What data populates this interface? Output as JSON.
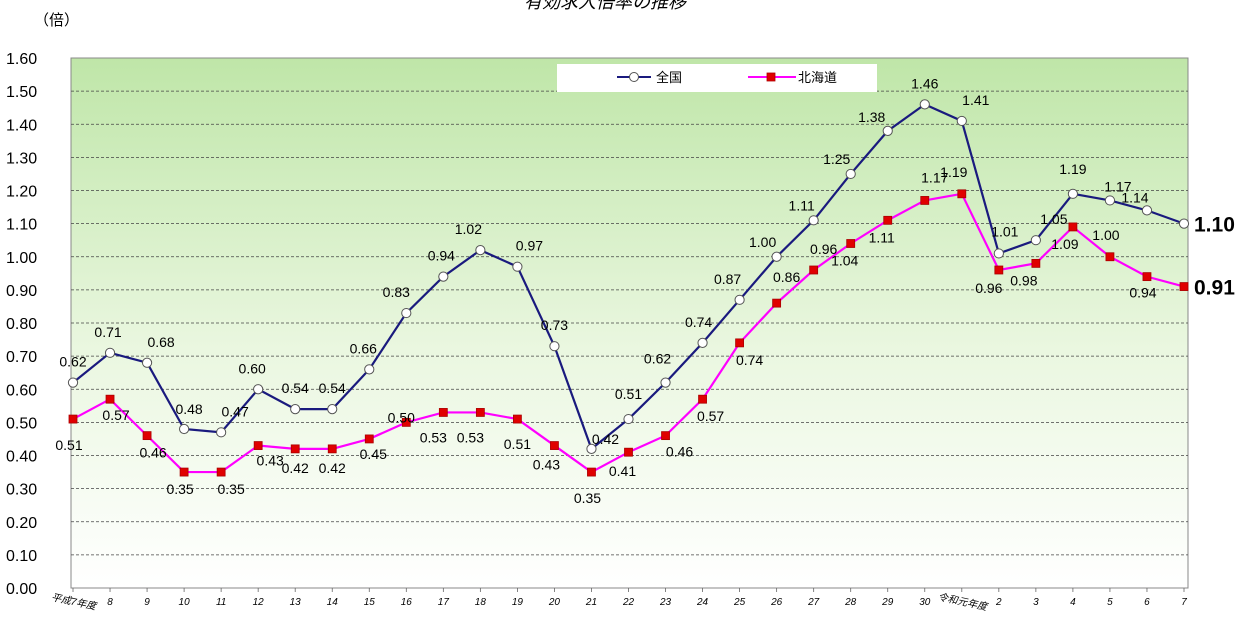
{
  "chart_data": {
    "type": "line",
    "title": "有効求人倍率の推移",
    "unit_label": "（倍）",
    "ylim": [
      0,
      1.6
    ],
    "yticks": [
      "0.00",
      "0.10",
      "0.20",
      "0.30",
      "0.40",
      "0.50",
      "0.60",
      "0.70",
      "0.80",
      "0.90",
      "1.00",
      "1.10",
      "1.20",
      "1.30",
      "1.40",
      "1.50",
      "1.60"
    ],
    "categories": [
      "平成7年度",
      "8",
      "9",
      "10",
      "11",
      "12",
      "13",
      "14",
      "15",
      "16",
      "17",
      "18",
      "19",
      "20",
      "21",
      "22",
      "23",
      "24",
      "25",
      "26",
      "27",
      "28",
      "29",
      "30",
      "令和元年度",
      "2",
      "3",
      "4",
      "5",
      "6",
      "7"
    ],
    "grid": true,
    "legend_position": "top-right",
    "series": [
      {
        "name": "全国",
        "color": "#1a1a7e",
        "marker": "circle",
        "values": [
          0.62,
          0.71,
          0.68,
          0.48,
          0.47,
          0.6,
          0.54,
          0.54,
          0.66,
          0.83,
          0.94,
          1.02,
          0.97,
          0.73,
          0.42,
          0.51,
          0.62,
          0.74,
          0.87,
          1.0,
          1.11,
          1.25,
          1.38,
          1.46,
          1.41,
          1.01,
          1.05,
          1.19,
          1.17,
          1.14,
          1.1
        ],
        "labels": [
          "0.62",
          "0.71",
          "0.68",
          "0.48",
          "0.47",
          "0.60",
          "0.54",
          "0.54",
          "0.66",
          "0.83",
          "0.94",
          "1.02",
          "0.97",
          "0.73",
          "0.42",
          "0.51",
          "0.62",
          "0.74",
          "0.87",
          "1.00",
          "1.11",
          "1.25",
          "1.38",
          "1.46",
          "1.41",
          "1.01",
          "1.05",
          "1.19",
          "1.17",
          "1.14",
          "1.10"
        ]
      },
      {
        "name": "北海道",
        "color": "#ff00ff",
        "marker": "square",
        "marker_color": "#e00000",
        "values": [
          0.51,
          0.57,
          0.46,
          0.35,
          0.35,
          0.43,
          0.42,
          0.42,
          0.45,
          0.5,
          0.53,
          0.53,
          0.51,
          0.43,
          0.35,
          0.41,
          0.46,
          0.57,
          0.74,
          0.86,
          0.96,
          1.04,
          1.11,
          1.17,
          1.19,
          0.96,
          0.98,
          1.09,
          1.0,
          0.94,
          0.91
        ],
        "labels": [
          "0.51",
          "0.57",
          "0.46",
          "0.35",
          "0.35",
          "0.43",
          "0.42",
          "0.42",
          "0.45",
          "0.50",
          "0.53",
          "0.53",
          "0.51",
          "0.43",
          "0.35",
          "0.41",
          "0.46",
          "0.57",
          "0.74",
          "0.86",
          "0.96",
          "1.04",
          "1.11",
          "1.17",
          "1.19",
          "0.96",
          "0.98",
          "1.09",
          "1.00",
          "0.94",
          "0.91"
        ]
      }
    ]
  }
}
